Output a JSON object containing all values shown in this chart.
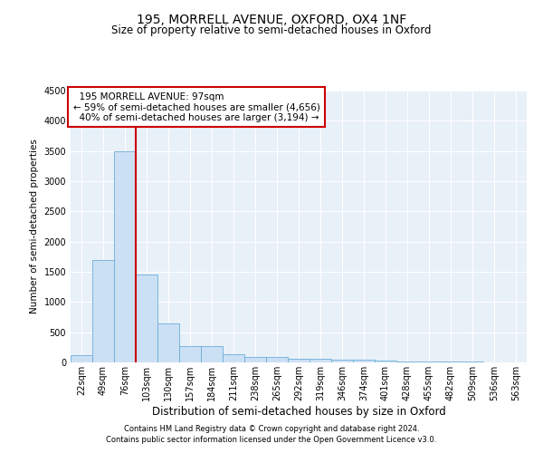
{
  "title1": "195, MORRELL AVENUE, OXFORD, OX4 1NF",
  "title2": "Size of property relative to semi-detached houses in Oxford",
  "xlabel": "Distribution of semi-detached houses by size in Oxford",
  "ylabel": "Number of semi-detached properties",
  "bar_color": "#cce0f5",
  "bar_edge_color": "#6baed6",
  "background_color": "#e8f0f8",
  "grid_color": "#ffffff",
  "vline_color": "#cc0000",
  "annotation_border_color": "#cc0000",
  "bins": [
    "22sqm",
    "49sqm",
    "76sqm",
    "103sqm",
    "130sqm",
    "157sqm",
    "184sqm",
    "211sqm",
    "238sqm",
    "265sqm",
    "292sqm",
    "319sqm",
    "346sqm",
    "374sqm",
    "401sqm",
    "428sqm",
    "455sqm",
    "482sqm",
    "509sqm",
    "536sqm",
    "563sqm"
  ],
  "values": [
    120,
    1700,
    3500,
    1450,
    640,
    270,
    275,
    135,
    95,
    90,
    65,
    55,
    45,
    40,
    30,
    20,
    15,
    10,
    8,
    5,
    3
  ],
  "property_bin_index": 2,
  "property_label": "195 MORRELL AVENUE: 97sqm",
  "pct_smaller": 59,
  "pct_smaller_n": "4,656",
  "pct_larger": 40,
  "pct_larger_n": "3,194",
  "ylim": [
    0,
    4500
  ],
  "yticks": [
    0,
    500,
    1000,
    1500,
    2000,
    2500,
    3000,
    3500,
    4000,
    4500
  ],
  "footer1": "Contains HM Land Registry data © Crown copyright and database right 2024.",
  "footer2": "Contains public sector information licensed under the Open Government Licence v3.0.",
  "title1_fontsize": 10,
  "title2_fontsize": 8.5,
  "xlabel_fontsize": 8.5,
  "ylabel_fontsize": 7.5,
  "tick_fontsize": 7,
  "annotation_fontsize": 7.5,
  "footer_fontsize": 6
}
